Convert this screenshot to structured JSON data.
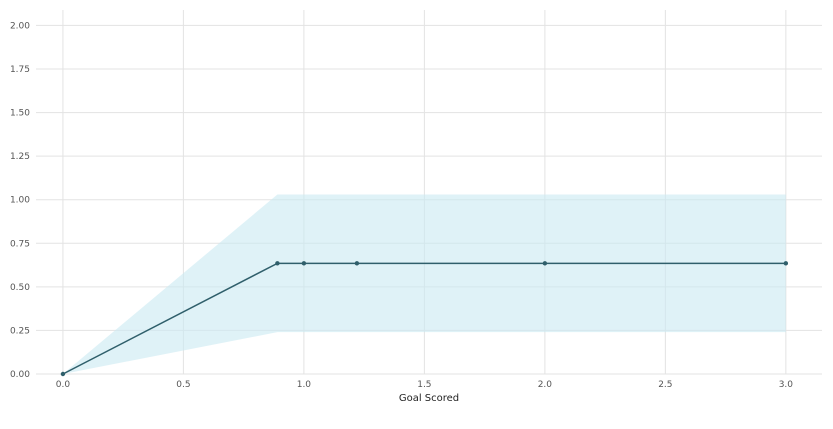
{
  "chart_data": {
    "type": "line",
    "title": "",
    "xlabel": "Goal Scored",
    "ylabel": "",
    "xlim": [
      -0.12,
      3.15
    ],
    "ylim": [
      0,
      2.1
    ],
    "grid": true,
    "x_ticks": [
      0.0,
      0.5,
      1.0,
      1.5,
      2.0,
      2.5,
      3.0
    ],
    "x_tick_labels": [
      "0.0",
      "0.5",
      "1.0",
      "1.5",
      "2.0",
      "2.5",
      "3.0"
    ],
    "y_ticks": [
      0.0,
      0.25,
      0.5,
      0.75,
      1.0,
      1.25,
      1.5,
      1.75,
      2.0
    ],
    "y_tick_labels": [
      "0.00",
      "0.25",
      "0.50",
      "0.75",
      "1.00",
      "1.25",
      "1.50",
      "1.75",
      "2.00"
    ],
    "series": [
      {
        "x": [
          0.0,
          0.89,
          1.0,
          1.22,
          2.0,
          3.0
        ],
        "y": [
          0.0,
          0.635,
          0.635,
          0.635,
          0.635,
          0.635
        ],
        "lower": [
          0.0,
          0.24,
          0.24,
          0.24,
          0.24,
          0.24
        ],
        "upper": [
          0.0,
          1.03,
          1.03,
          1.03,
          1.03,
          1.03
        ],
        "line_color": "#2f5f6b",
        "band_color": "#c9e9f1"
      }
    ]
  }
}
